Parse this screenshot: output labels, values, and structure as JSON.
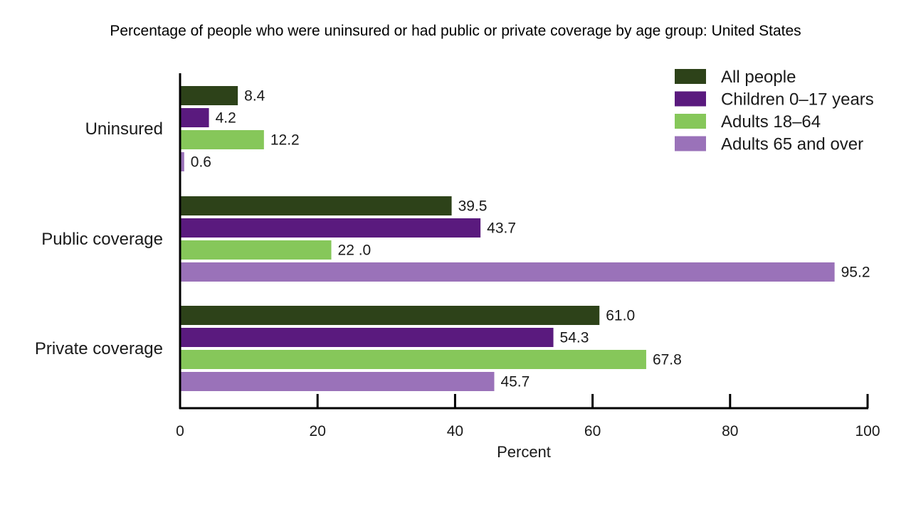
{
  "title": "Percentage of people who were uninsured or had public or private coverage by age group: United States",
  "colors": {
    "all_people": "#2d4219",
    "children": "#5a1a7e",
    "adults_18_64": "#86c75a",
    "adults_65": "#9a72b9"
  },
  "chart_data": {
    "type": "bar",
    "orientation": "horizontal",
    "categories": [
      "Uninsured",
      "Public coverage",
      "Private coverage"
    ],
    "series": [
      {
        "name": "All people",
        "color_key": "all_people",
        "values": [
          8.4,
          39.5,
          61.0
        ],
        "labels": [
          "8.4",
          "39.5",
          "61.0"
        ]
      },
      {
        "name": "Children 0–17 years",
        "color_key": "children",
        "values": [
          4.2,
          43.7,
          54.3
        ],
        "labels": [
          "4.2",
          "43.7",
          "54.3"
        ]
      },
      {
        "name": "Adults 18–64",
        "color_key": "adults_18_64",
        "values": [
          12.2,
          22.0,
          67.8
        ],
        "labels": [
          "12.2",
          "22 .0",
          "67.8"
        ]
      },
      {
        "name": "Adults 65 and over",
        "color_key": "adults_65",
        "values": [
          0.6,
          95.2,
          45.7
        ],
        "labels": [
          "0.6",
          "95.2",
          "45.7"
        ]
      }
    ],
    "xlabel": "Percent",
    "ylabel": "",
    "xlim": [
      0,
      100
    ],
    "xticks": [
      0,
      20,
      40,
      60,
      80,
      100
    ],
    "grid": false,
    "legend_position": "top-right"
  }
}
